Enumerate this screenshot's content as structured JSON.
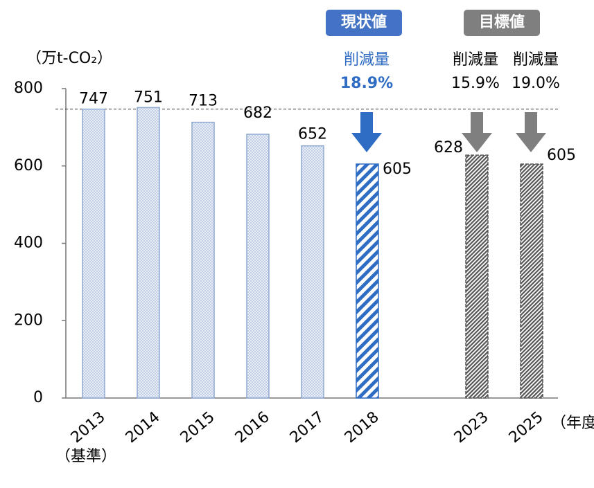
{
  "chart_data": {
    "type": "bar",
    "y_label": "（万t-CO₂）",
    "x_label": "（年度）",
    "base_note": "（基準）",
    "categories": [
      "2013",
      "2014",
      "2015",
      "2016",
      "2017",
      "2018",
      null,
      "2023",
      "2025"
    ],
    "values": [
      747,
      751,
      713,
      682,
      652,
      605,
      null,
      628,
      605
    ],
    "patterns": [
      "crosshatch",
      "crosshatch",
      "crosshatch",
      "crosshatch",
      "crosshatch",
      "stripes",
      null,
      "dense-stripes",
      "dense-stripes"
    ],
    "colors": [
      "#8fa8d0",
      "#8fa8d0",
      "#8fa8d0",
      "#8fa8d0",
      "#8fa8d0",
      "#2f6cc4",
      null,
      "#555555",
      "#555555"
    ],
    "reference_line": 747,
    "ylim": [
      0,
      800
    ],
    "yticks": [
      0,
      200,
      400,
      600,
      800
    ],
    "badges": [
      {
        "text": "現状値",
        "color": "#4472c4"
      },
      {
        "text": "目標値",
        "color": "#7f7f7f"
      }
    ],
    "annotations": [
      {
        "label": "削減量",
        "value": "18.9%",
        "color": "#2f6cc4"
      },
      {
        "label": "削減量",
        "value": "15.9%",
        "color": "#000000"
      },
      {
        "label": "削減量",
        "value": "19.0%",
        "color": "#000000"
      }
    ]
  }
}
